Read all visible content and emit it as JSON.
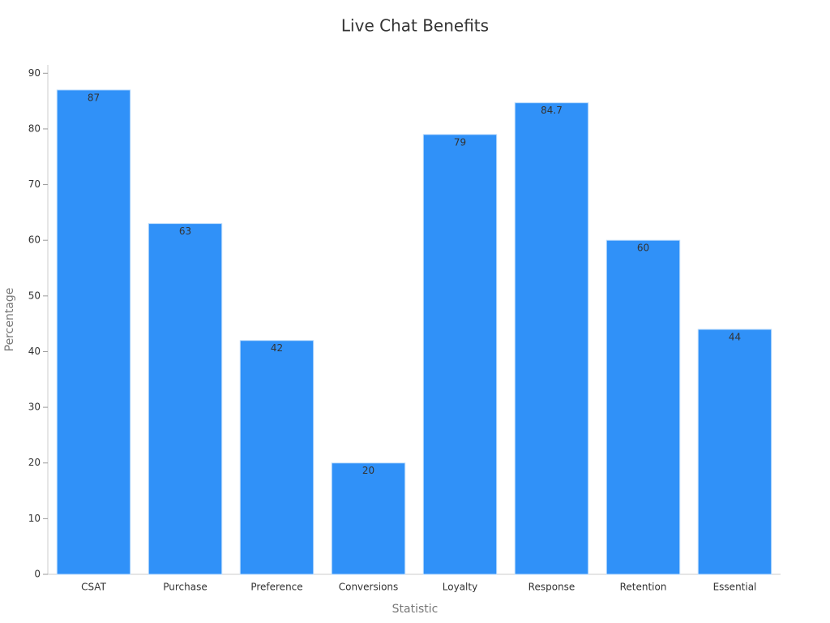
{
  "chart_data": {
    "type": "bar",
    "title": "Live Chat Benefits",
    "x_label": "Statistic",
    "y_label": "Percentage",
    "categories": [
      "CSAT",
      "Purchase",
      "Preference",
      "Conversions",
      "Loyalty",
      "Response",
      "Retention",
      "Essential"
    ],
    "values": [
      87,
      63,
      42,
      20,
      79,
      84.7,
      60,
      44
    ],
    "color": "#3091f8",
    "ylim": [
      0,
      91.5
    ],
    "yticks": [
      0,
      10,
      20,
      30,
      40,
      50,
      60,
      70,
      80,
      90
    ],
    "grid": false
  }
}
